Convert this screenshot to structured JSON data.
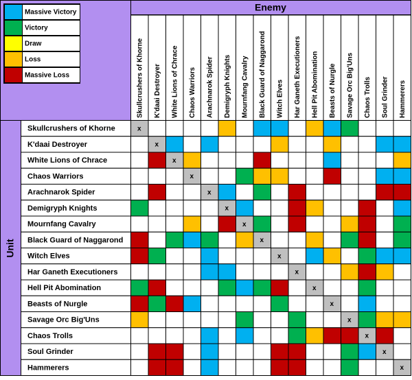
{
  "title": "Enemy",
  "row_header": "Unit",
  "legend": [
    {
      "label": "Massive Victory",
      "color": "#00b0f0"
    },
    {
      "label": "Victory",
      "color": "#00b050"
    },
    {
      "label": "Draw",
      "color": "#ffff00"
    },
    {
      "label": "Loss",
      "color": "#ffc000"
    },
    {
      "label": "Massive Loss",
      "color": "#c00000"
    }
  ],
  "units": [
    "Skullcrushers of Khorne",
    "K'daai Destroyer",
    "White Lions of Chrace",
    "Chaos Warriors",
    "Arachnarok Spider",
    "Demigryph Knights",
    "Mournfang Cavalry",
    "Black Guard of Naggarond",
    "Witch Elves",
    "Har Ganeth Executioners",
    "Hell Pit Abomination",
    "Beasts of Nurgle",
    "Savage Orc Big'Uns",
    "Chaos Trolls",
    "Soul Grinder",
    "Hammerers"
  ],
  "cells": [
    [
      "x",
      null,
      null,
      null,
      null,
      3,
      null,
      0,
      0,
      null,
      3,
      0,
      1,
      null,
      null,
      null
    ],
    [
      null,
      "x",
      0,
      null,
      0,
      null,
      null,
      null,
      3,
      null,
      null,
      3,
      null,
      null,
      0,
      0
    ],
    [
      null,
      4,
      "x",
      3,
      null,
      null,
      null,
      4,
      null,
      null,
      null,
      0,
      null,
      null,
      null,
      3
    ],
    [
      null,
      null,
      null,
      "x",
      null,
      null,
      1,
      3,
      3,
      null,
      null,
      4,
      null,
      null,
      0,
      0
    ],
    [
      null,
      4,
      null,
      null,
      "x",
      0,
      null,
      1,
      null,
      4,
      null,
      null,
      null,
      null,
      4,
      4
    ],
    [
      1,
      null,
      null,
      null,
      null,
      "x",
      0,
      null,
      null,
      4,
      3,
      null,
      null,
      4,
      null,
      0
    ],
    [
      null,
      null,
      null,
      3,
      null,
      4,
      "x",
      1,
      null,
      4,
      null,
      null,
      3,
      4,
      null,
      1
    ],
    [
      4,
      null,
      1,
      0,
      1,
      null,
      3,
      "x",
      null,
      null,
      3,
      null,
      1,
      4,
      null,
      1
    ],
    [
      4,
      1,
      null,
      null,
      0,
      null,
      null,
      null,
      "x",
      null,
      0,
      3,
      null,
      1,
      0,
      0
    ],
    [
      null,
      null,
      null,
      null,
      0,
      0,
      null,
      null,
      null,
      "x",
      null,
      null,
      3,
      4,
      3,
      null
    ],
    [
      1,
      4,
      null,
      null,
      null,
      1,
      0,
      1,
      4,
      null,
      "x",
      null,
      null,
      1,
      null,
      null
    ],
    [
      4,
      1,
      4,
      0,
      null,
      null,
      null,
      null,
      1,
      null,
      null,
      "x",
      null,
      0,
      null,
      null
    ],
    [
      3,
      null,
      null,
      null,
      null,
      null,
      1,
      null,
      null,
      1,
      null,
      null,
      "x",
      1,
      3,
      3
    ],
    [
      null,
      null,
      null,
      null,
      0,
      null,
      0,
      null,
      null,
      1,
      3,
      4,
      4,
      "x",
      4,
      null
    ],
    [
      null,
      4,
      4,
      null,
      0,
      null,
      null,
      null,
      4,
      4,
      null,
      null,
      1,
      0,
      "x",
      null
    ],
    [
      null,
      4,
      4,
      null,
      0,
      null,
      null,
      null,
      4,
      4,
      null,
      null,
      1,
      null,
      null,
      "x"
    ]
  ]
}
